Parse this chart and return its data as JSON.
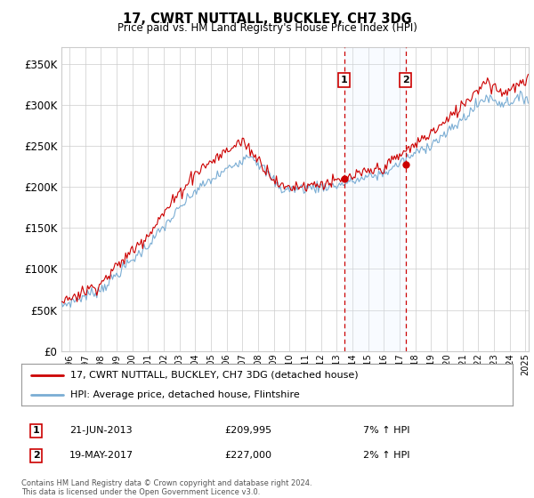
{
  "title": "17, CWRT NUTTALL, BUCKLEY, CH7 3DG",
  "subtitle": "Price paid vs. HM Land Registry's House Price Index (HPI)",
  "ylabel_ticks": [
    "£0",
    "£50K",
    "£100K",
    "£150K",
    "£200K",
    "£250K",
    "£300K",
    "£350K"
  ],
  "ytick_vals": [
    0,
    50000,
    100000,
    150000,
    200000,
    250000,
    300000,
    350000
  ],
  "ylim": [
    0,
    370000
  ],
  "xlim_left": 1995.5,
  "xlim_right": 2025.2,
  "sale1_date_num": 2013.47,
  "sale1_price": 209995,
  "sale2_date_num": 2017.38,
  "sale2_price": 227000,
  "legend_line1": "17, CWRT NUTTALL, BUCKLEY, CH7 3DG (detached house)",
  "legend_line2": "HPI: Average price, detached house, Flintshire",
  "annotation1_date": "21-JUN-2013",
  "annotation1_price": "£209,995",
  "annotation1_hpi": "7% ↑ HPI",
  "annotation2_date": "19-MAY-2017",
  "annotation2_price": "£227,000",
  "annotation2_hpi": "2% ↑ HPI",
  "footer": "Contains HM Land Registry data © Crown copyright and database right 2024.\nThis data is licensed under the Open Government Licence v3.0.",
  "hpi_color": "#7aadd4",
  "price_color": "#cc0000",
  "shade_color": "#ddeeff",
  "marker_box_color": "#cc0000",
  "background_color": "#ffffff",
  "xtick_years": [
    1996,
    1997,
    1998,
    1999,
    2000,
    2001,
    2002,
    2003,
    2004,
    2005,
    2006,
    2007,
    2008,
    2009,
    2010,
    2011,
    2012,
    2013,
    2014,
    2015,
    2016,
    2017,
    2018,
    2019,
    2020,
    2021,
    2022,
    2023,
    2024,
    2025
  ]
}
